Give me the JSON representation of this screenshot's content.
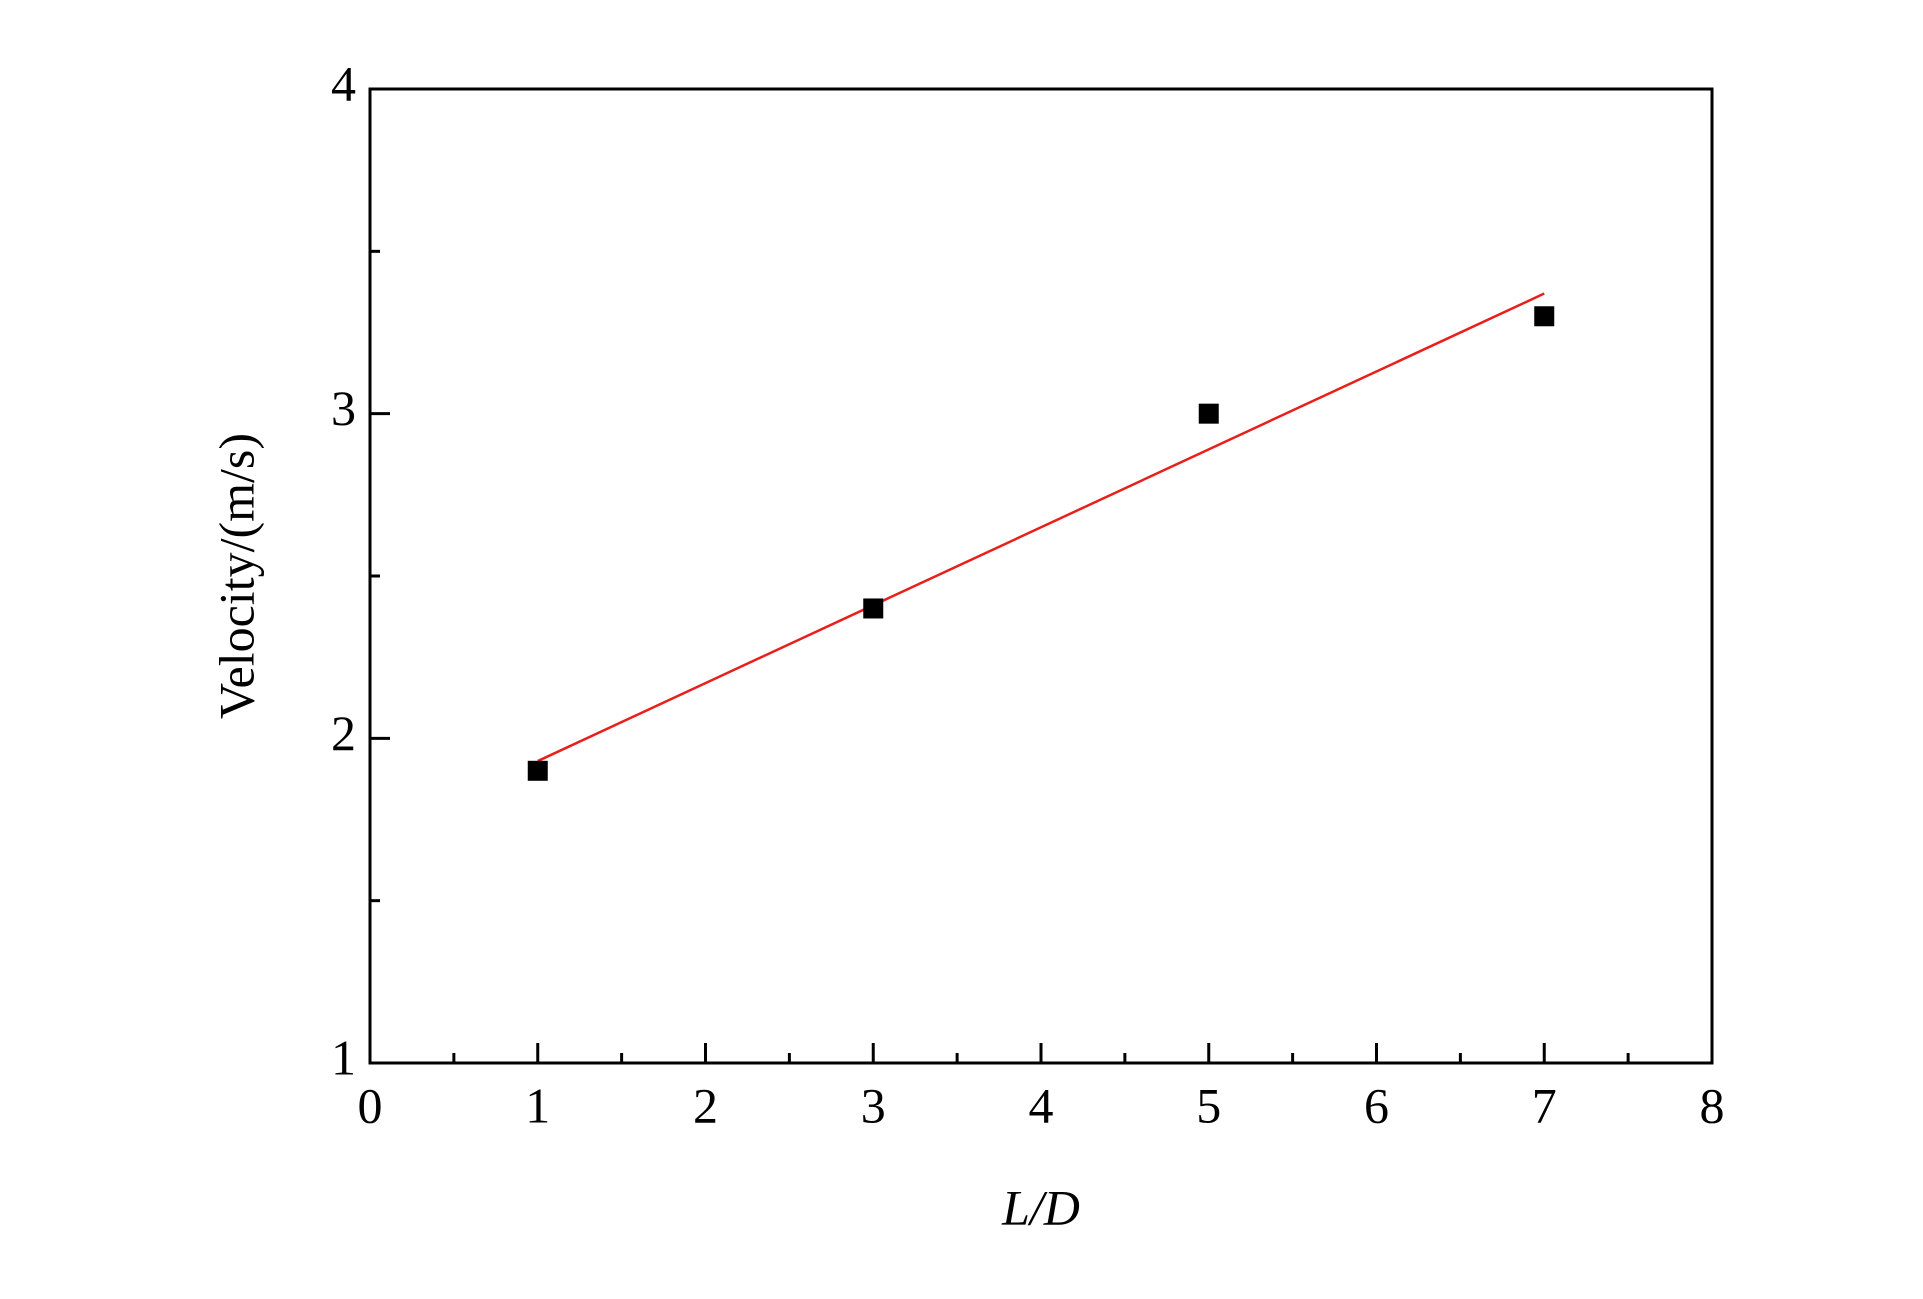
{
  "chart_data": {
    "type": "scatter",
    "x_label": "L/D",
    "y_label": "Velocity/(m/s)",
    "xlim": [
      0,
      8
    ],
    "ylim": [
      1,
      4
    ],
    "xticks": [
      0,
      1,
      2,
      3,
      4,
      5,
      6,
      7,
      8
    ],
    "yticks": [
      1,
      2,
      3,
      4
    ],
    "xminorticks": [
      0.5,
      1.5,
      2.5,
      3.5,
      4.5,
      5.5,
      6.5,
      7.5
    ],
    "yminorticks": [
      1.5,
      2.5,
      3.5
    ],
    "x": [
      1,
      3,
      5,
      7
    ],
    "series": [
      {
        "color": "#000000",
        "values": [
          1.9,
          2.4,
          3.0,
          3.3
        ]
      }
    ],
    "fit": {
      "color": "#e8201c",
      "x": [
        1,
        7
      ],
      "values": [
        1.93,
        3.37
      ]
    }
  }
}
